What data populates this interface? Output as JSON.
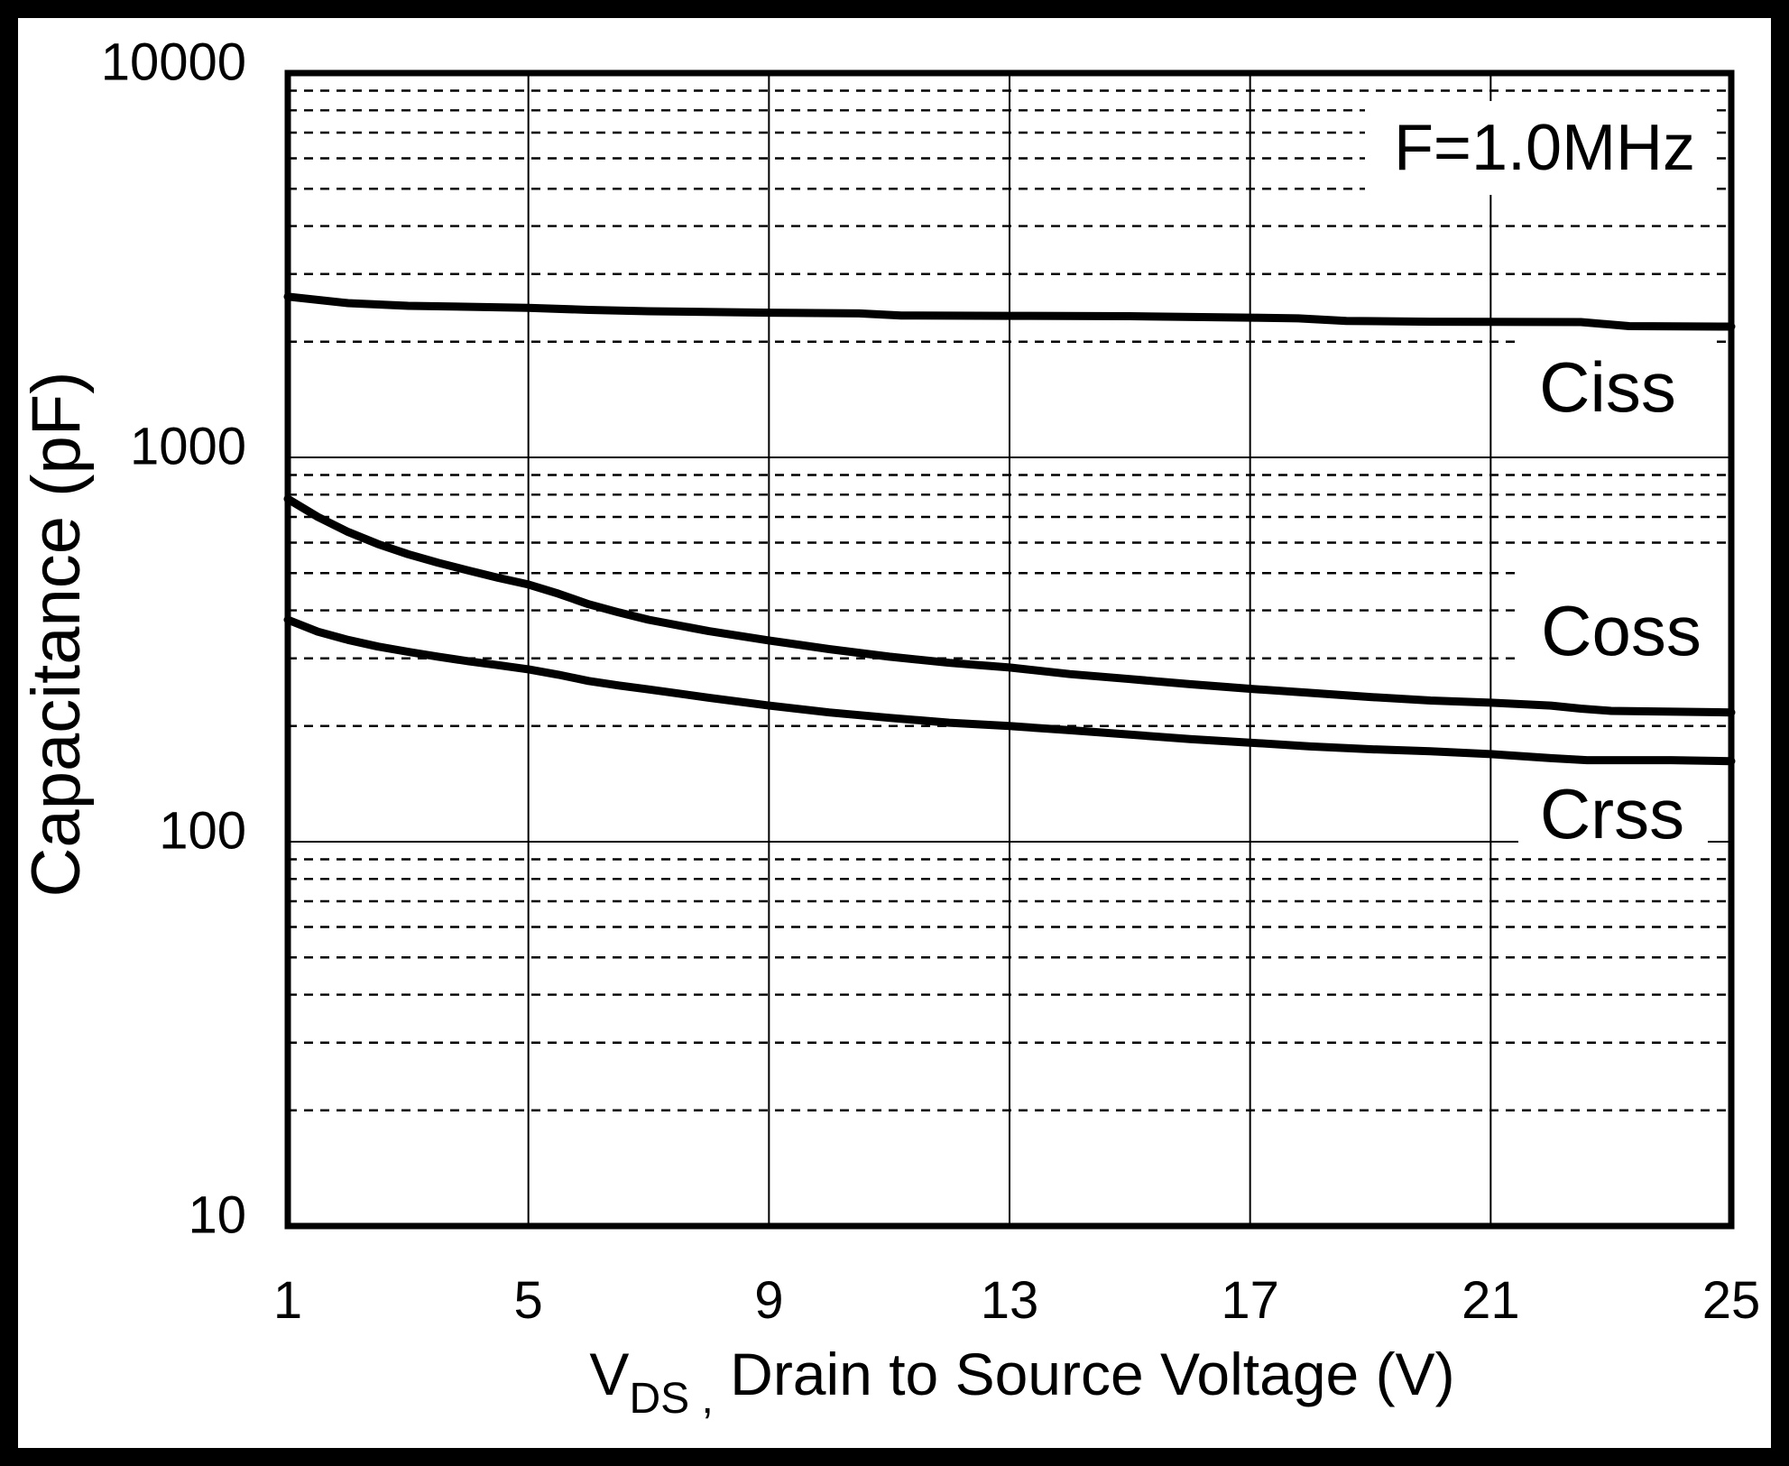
{
  "frame": {
    "border_color": "#000000",
    "background_color": "#ffffff",
    "ink_color": "#000000"
  },
  "chart_data": {
    "type": "line",
    "title": "",
    "annotation": "F=1.0MHz",
    "xlabel": {
      "prefix": "V",
      "subscript": "DS ,",
      "rest": " Drain to Source Voltage (V)"
    },
    "ylabel": "Capacitance (pF)",
    "x_axis": {
      "scale": "linear",
      "min": 1,
      "max": 25,
      "ticks": [
        1,
        5,
        9,
        13,
        17,
        21,
        25
      ],
      "tick_labels": [
        "1",
        "5",
        "9",
        "13",
        "17",
        "21",
        "25"
      ]
    },
    "y_axis": {
      "scale": "log",
      "min": 10,
      "max": 10000,
      "ticks": [
        10,
        100,
        1000,
        10000
      ],
      "tick_labels": [
        "10",
        "100",
        "1000",
        "10000"
      ],
      "minor_gridlines": "dashed",
      "unit": "pF"
    },
    "grid": true,
    "legend_position": "inline-labels",
    "annotation_anchor": {
      "v": 21.9,
      "pf": 6400
    },
    "series": [
      {
        "name": "Ciss",
        "color": "#000000",
        "label_anchor": {
          "v": 22.95,
          "pf": 1530
        },
        "points": [
          [
            1,
            2620
          ],
          [
            2,
            2520
          ],
          [
            3,
            2480
          ],
          [
            5,
            2450
          ],
          [
            6,
            2420
          ],
          [
            7,
            2400
          ],
          [
            9,
            2380
          ],
          [
            10.5,
            2370
          ],
          [
            11.2,
            2340
          ],
          [
            13,
            2335
          ],
          [
            15,
            2330
          ],
          [
            17,
            2310
          ],
          [
            17.8,
            2300
          ],
          [
            18.6,
            2265
          ],
          [
            20,
            2255
          ],
          [
            22.5,
            2250
          ],
          [
            23.3,
            2195
          ],
          [
            25,
            2190
          ]
        ]
      },
      {
        "name": "Coss",
        "color": "#000000",
        "label_anchor": {
          "v": 23.2,
          "pf": 356
        },
        "points": [
          [
            1,
            780
          ],
          [
            1.5,
            700
          ],
          [
            2,
            640
          ],
          [
            2.5,
            595
          ],
          [
            3,
            560
          ],
          [
            3.5,
            532
          ],
          [
            4,
            508
          ],
          [
            4.5,
            486
          ],
          [
            5,
            467
          ],
          [
            5.5,
            442
          ],
          [
            6,
            415
          ],
          [
            6.5,
            395
          ],
          [
            7,
            378
          ],
          [
            8,
            353
          ],
          [
            9,
            334
          ],
          [
            10,
            317
          ],
          [
            11,
            303
          ],
          [
            12,
            292
          ],
          [
            13,
            284
          ],
          [
            14,
            273
          ],
          [
            15,
            265
          ],
          [
            16,
            257
          ],
          [
            17,
            250
          ],
          [
            18,
            244
          ],
          [
            19,
            238
          ],
          [
            20,
            233
          ],
          [
            21,
            230
          ],
          [
            22,
            226
          ],
          [
            22.5,
            222
          ],
          [
            23,
            219
          ],
          [
            25,
            217
          ]
        ]
      },
      {
        "name": "Crss",
        "color": "#000000",
        "label_anchor": {
          "v": 23.0,
          "pf": 119
        },
        "points": [
          [
            1,
            378
          ],
          [
            1.5,
            352
          ],
          [
            2,
            335
          ],
          [
            2.5,
            322
          ],
          [
            3,
            312
          ],
          [
            3.5,
            303
          ],
          [
            4,
            295
          ],
          [
            4.5,
            288
          ],
          [
            5,
            281
          ],
          [
            5.5,
            272
          ],
          [
            6,
            262
          ],
          [
            6.5,
            255
          ],
          [
            7,
            249
          ],
          [
            8,
            237
          ],
          [
            9,
            226
          ],
          [
            10,
            217
          ],
          [
            11,
            210
          ],
          [
            12,
            204
          ],
          [
            13,
            200
          ],
          [
            14,
            195
          ],
          [
            15,
            190
          ],
          [
            16,
            185
          ],
          [
            17,
            181
          ],
          [
            18,
            177
          ],
          [
            19,
            174
          ],
          [
            20,
            172
          ],
          [
            21,
            169
          ],
          [
            22,
            165
          ],
          [
            22.6,
            163
          ],
          [
            24,
            163
          ],
          [
            25,
            162
          ]
        ]
      }
    ]
  }
}
